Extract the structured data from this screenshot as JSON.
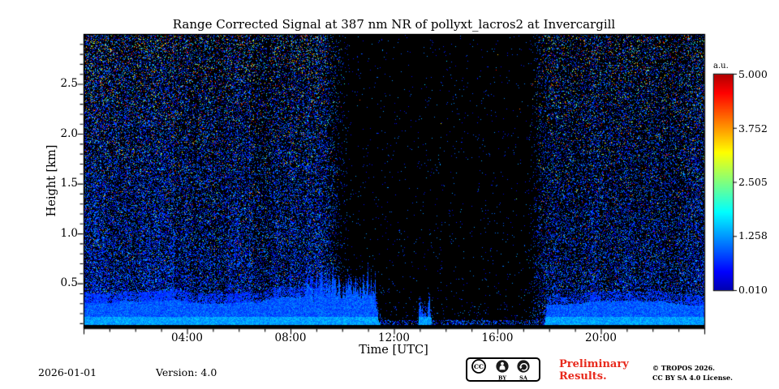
{
  "title": "Range Corrected Signal at 387 nm NR of pollyxt_lacros2 at Invercargill",
  "colors": {
    "preliminary_red": "#e8291c",
    "background": "#ffffff",
    "heatmap_background": "#000000"
  },
  "chart_data": {
    "type": "heatmap",
    "title": "Range Corrected Signal at 387 nm NR of pollyxt_lacros2 at Invercargill",
    "xlabel": "Time [UTC]",
    "ylabel": "Height [km]",
    "x_range_hours": [
      0,
      24
    ],
    "y_range_km": [
      0.05,
      3.0
    ],
    "x_major_ticks": [
      {
        "hour": 4,
        "label": "04:00"
      },
      {
        "hour": 8,
        "label": "08:00"
      },
      {
        "hour": 12,
        "label": "12:00"
      },
      {
        "hour": 16,
        "label": "16:00"
      },
      {
        "hour": 20,
        "label": "20:00"
      }
    ],
    "y_major_ticks": [
      {
        "km": 0.5,
        "label": "0.5"
      },
      {
        "km": 1.0,
        "label": "1.0"
      },
      {
        "km": 1.5,
        "label": "1.5"
      },
      {
        "km": 2.0,
        "label": "2.0"
      },
      {
        "km": 2.5,
        "label": "2.5"
      }
    ],
    "colorbar": {
      "unit_label": "a.u.",
      "vmin": 0.01,
      "vmax": 5.0,
      "colormap": "jet",
      "ticks": [
        {
          "value": 5.0,
          "label": "5.000"
        },
        {
          "value": 3.752,
          "label": "3.752"
        },
        {
          "value": 2.505,
          "label": "2.505"
        },
        {
          "value": 1.258,
          "label": "1.258"
        },
        {
          "value": 0.01,
          "label": "0.010"
        }
      ]
    },
    "features": {
      "aerosol_layer_segments_utc": [
        [
          0,
          11.55
        ],
        [
          12.95,
          13.45
        ],
        [
          17.78,
          24
        ]
      ],
      "aerosol_layer_top_km_night_morning": 0.33,
      "aerosol_layer_spiky_tops_km_0830_1130": 0.72,
      "aerosol_layer_top_km_evening": 0.3,
      "layer_signal_au": 1.0,
      "daytime_low_signal_window_utc": [
        9.2,
        17.8
      ],
      "noise": "dense blue speckle noise at night over black background, brighter multicolor speckle toward plot top, near-black during daytime window"
    },
    "render": {
      "seed": 1337,
      "vmin": 0.01,
      "vmax": 5.0,
      "ground_black_km": 0.085,
      "day": {
        "start_ramp": [
          9.0,
          10.4
        ],
        "end_ramp": [
          17.15,
          18.05
        ]
      },
      "layer": {
        "base_morning": 0.33,
        "spiky_start": 8.55,
        "spike_base": 0.3,
        "spike_amp": 0.42,
        "taper": [
          11.3,
          11.58
        ],
        "patch": [
          12.95,
          13.45
        ],
        "patch_amp": 0.3,
        "evening_start": 17.78,
        "base_evening": 0.3
      },
      "noise": {
        "night_base": 0.26,
        "night_exp": 0.3,
        "night_scale": 1.1,
        "day_base": 0.012,
        "day_exp": 0.05,
        "day_scale": 0.22,
        "day_bottom_boost": 0.4,
        "bright_base": 0.04,
        "bright_amp": 0.3,
        "bright_pow": 2.6
      }
    }
  },
  "footer": {
    "date": "2026-01-01",
    "version": "Version: 4.0",
    "preliminary_line1": "Preliminary",
    "preliminary_line2": "Results.",
    "copyright_line1": "© TROPOS 2026.",
    "copyright_line2": "CC BY SA 4.0 License.",
    "badge": {
      "cc": "CC",
      "by": "BY",
      "sa": "SA"
    }
  }
}
